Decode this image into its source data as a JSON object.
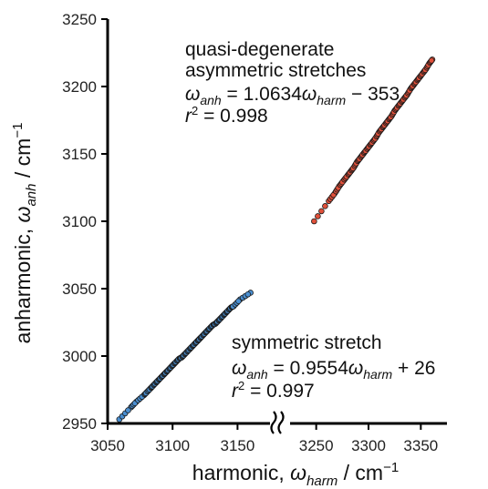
{
  "chart_data": {
    "type": "scatter",
    "xlabel": {
      "prefix": "harmonic, ",
      "symbol": "ω",
      "sub": "harm",
      "unit": " / cm",
      "sup": "−1"
    },
    "ylabel": {
      "prefix": "anharmonic, ",
      "symbol": "ω",
      "sub": "anh",
      "unit": " / cm",
      "sup": "−1"
    },
    "ylim": [
      2950,
      3250
    ],
    "yticks": [
      2950,
      3000,
      3050,
      3100,
      3150,
      3200,
      3250
    ],
    "broken_x_axis": true,
    "x_segments": [
      {
        "xlim": [
          3050,
          3175
        ],
        "ticks": [
          3050,
          3100,
          3150
        ]
      },
      {
        "xlim": [
          3225,
          3375
        ],
        "ticks": [
          3250,
          3300,
          3350
        ]
      }
    ],
    "grid": false,
    "series": [
      {
        "color": "#4a8fd1",
        "x": [
          3059,
          3068,
          3072,
          3078,
          3080,
          3083,
          3085,
          3087,
          3089,
          3091,
          3093,
          3095,
          3097,
          3099,
          3101,
          3103,
          3105,
          3107,
          3109,
          3111,
          3113,
          3115,
          3117,
          3119,
          3121,
          3123,
          3125,
          3127,
          3129,
          3131,
          3133,
          3135,
          3137,
          3139,
          3141,
          3143,
          3145,
          3147,
          3152,
          3160
        ],
        "y": [
          2953,
          2962,
          2966,
          2971,
          2973,
          2976,
          2978,
          2980,
          2982,
          2984,
          2986,
          2988,
          2990,
          2992,
          2994,
          2996,
          2998,
          2999,
          3001,
          3003,
          3005,
          3007,
          3009,
          3011,
          3013,
          3015,
          3017,
          3019,
          3021,
          3023,
          3024,
          3026,
          3028,
          3030,
          3032,
          3034,
          3036,
          3037,
          3042,
          3047
        ]
      },
      {
        "color": "#e0503a",
        "x": [
          3248,
          3262,
          3268,
          3272,
          3276,
          3280,
          3283,
          3286,
          3289,
          3292,
          3295,
          3298,
          3301,
          3304,
          3307,
          3310,
          3313,
          3316,
          3319,
          3322,
          3325,
          3328,
          3331,
          3334,
          3337,
          3340,
          3343,
          3346,
          3349,
          3352,
          3355,
          3358,
          3361
        ],
        "y": [
          3100,
          3115,
          3121,
          3126,
          3130,
          3134,
          3137,
          3140,
          3144,
          3147,
          3150,
          3153,
          3156,
          3159,
          3162,
          3166,
          3169,
          3172,
          3175,
          3178,
          3182,
          3185,
          3188,
          3191,
          3194,
          3198,
          3201,
          3204,
          3207,
          3210,
          3213,
          3217,
          3220
        ]
      }
    ],
    "annotations": {
      "asym": {
        "line1": "quasi-degenerate",
        "line2": "asymmetric stretches",
        "eq_symbol": "ω",
        "eq_sub1": "anh",
        "eq_mid": " = 1.0634",
        "eq_symbol2": "ω",
        "eq_sub2": "harm",
        "eq_end": " − 353",
        "r_symbol": "r",
        "r_sup": "2",
        "r_rest": " = 0.998"
      },
      "sym": {
        "line1": "symmetric stretch",
        "eq_symbol": "ω",
        "eq_sub1": "anh",
        "eq_mid": " = 0.9554",
        "eq_symbol2": "ω",
        "eq_sub2": "harm",
        "eq_end": " + 26",
        "r_symbol": "r",
        "r_sup": "2",
        "r_rest": " = 0.997"
      }
    }
  }
}
